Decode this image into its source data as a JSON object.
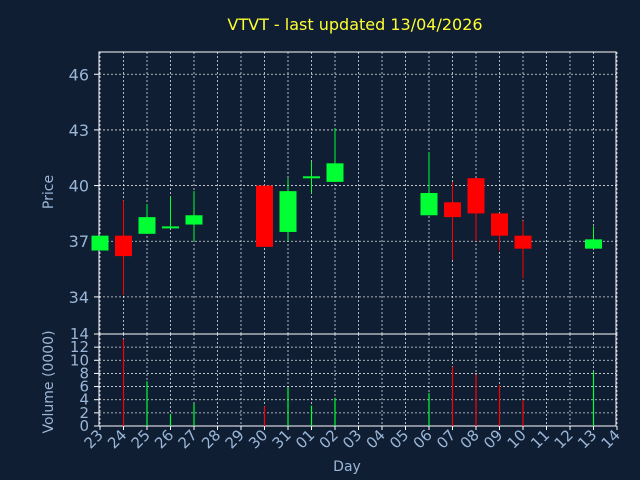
{
  "colors": {
    "background": "#0f1e33",
    "plot_border": "#ffffff",
    "grid": "#ffffff",
    "text": "#9bb6d6",
    "title": "#ffff33",
    "up": "#00ff33",
    "down": "#ff0000"
  },
  "chart_data": [
    {
      "type": "candlestick",
      "title": "VTVT - last updated 13/04/2026",
      "ylabel": "Price",
      "ylim": [
        32,
        47.2
      ],
      "yticks": [
        34,
        37,
        40,
        43,
        46
      ],
      "grid": true,
      "days": [
        "23",
        "24",
        "25",
        "26",
        "27",
        "28",
        "29",
        "30",
        "31",
        "01",
        "02",
        "03",
        "04",
        "05",
        "06",
        "07",
        "08",
        "09",
        "10",
        "11",
        "12",
        "13",
        "14"
      ],
      "candles": [
        {
          "day": "23",
          "open": 36.5,
          "close": 37.3,
          "high": 37.3,
          "low": 36.5
        },
        {
          "day": "24",
          "open": 37.3,
          "close": 36.2,
          "high": 39.2,
          "low": 34.1
        },
        {
          "day": "25",
          "open": 37.4,
          "close": 38.3,
          "high": 39.0,
          "low": 37.4
        },
        {
          "day": "26",
          "open": 37.7,
          "close": 37.8,
          "high": 39.4,
          "low": 37.7
        },
        {
          "day": "27",
          "open": 37.9,
          "close": 38.4,
          "high": 39.7,
          "low": 37.0
        },
        {
          "day": "30",
          "open": 40.0,
          "close": 36.7,
          "high": 40.0,
          "low": 36.7
        },
        {
          "day": "31",
          "open": 37.5,
          "close": 39.7,
          "high": 40.4,
          "low": 37.0
        },
        {
          "day": "01",
          "open": 40.4,
          "close": 40.5,
          "high": 41.3,
          "low": 39.6
        },
        {
          "day": "02",
          "open": 40.2,
          "close": 41.2,
          "high": 43.1,
          "low": 40.2
        },
        {
          "day": "06",
          "open": 38.4,
          "close": 39.6,
          "high": 41.8,
          "low": 38.4
        },
        {
          "day": "07",
          "open": 39.1,
          "close": 38.3,
          "high": 40.2,
          "low": 36.0
        },
        {
          "day": "08",
          "open": 40.4,
          "close": 38.5,
          "high": 40.4,
          "low": 37.0
        },
        {
          "day": "09",
          "open": 38.5,
          "close": 37.3,
          "high": 38.5,
          "low": 36.5
        },
        {
          "day": "10",
          "open": 37.3,
          "close": 36.6,
          "high": 38.1,
          "low": 35.0
        },
        {
          "day": "13",
          "open": 36.6,
          "close": 37.1,
          "high": 37.8,
          "low": 36.6
        }
      ]
    },
    {
      "type": "bar",
      "ylabel": "Volume (0000)",
      "xlabel": "Day",
      "ylim": [
        0,
        14
      ],
      "yticks": [
        0,
        2,
        4,
        6,
        8,
        10,
        12,
        14
      ],
      "grid": true,
      "days": [
        "23",
        "24",
        "25",
        "26",
        "27",
        "28",
        "29",
        "30",
        "31",
        "01",
        "02",
        "03",
        "04",
        "05",
        "06",
        "07",
        "08",
        "09",
        "10",
        "11",
        "12",
        "13",
        "14"
      ],
      "bars": [
        {
          "day": "24",
          "value": 13.2,
          "direction": "down"
        },
        {
          "day": "25",
          "value": 6.8,
          "direction": "up"
        },
        {
          "day": "26",
          "value": 1.8,
          "direction": "up"
        },
        {
          "day": "27",
          "value": 3.4,
          "direction": "up"
        },
        {
          "day": "30",
          "value": 3.0,
          "direction": "down"
        },
        {
          "day": "31",
          "value": 5.8,
          "direction": "up"
        },
        {
          "day": "01",
          "value": 3.1,
          "direction": "up"
        },
        {
          "day": "02",
          "value": 4.3,
          "direction": "up"
        },
        {
          "day": "06",
          "value": 5.0,
          "direction": "up"
        },
        {
          "day": "07",
          "value": 9.0,
          "direction": "down"
        },
        {
          "day": "08",
          "value": 7.8,
          "direction": "down"
        },
        {
          "day": "09",
          "value": 6.2,
          "direction": "down"
        },
        {
          "day": "10",
          "value": 3.9,
          "direction": "down"
        },
        {
          "day": "13",
          "value": 8.3,
          "direction": "up"
        }
      ]
    }
  ]
}
